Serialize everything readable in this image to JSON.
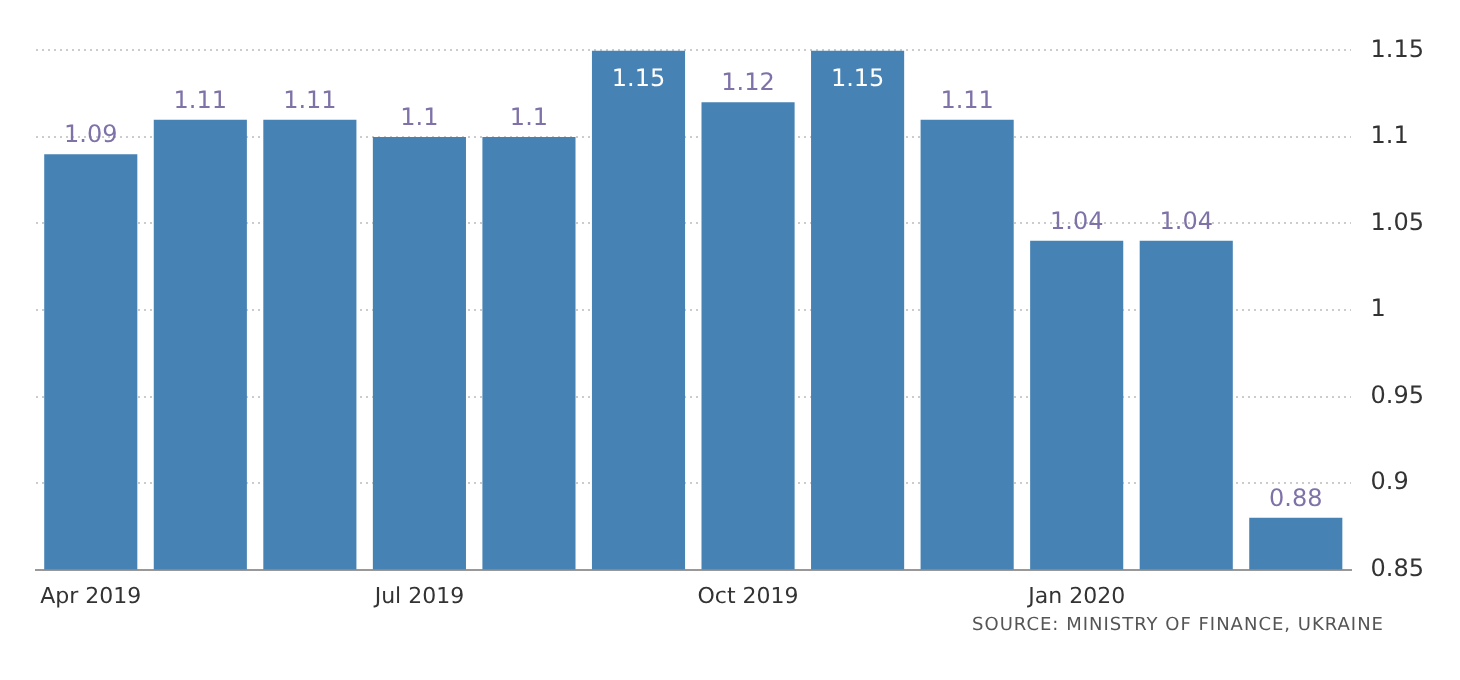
{
  "chart_data": {
    "type": "bar",
    "categories": [
      "Apr 2019",
      null,
      null,
      "Jul 2019",
      null,
      null,
      "Oct 2019",
      null,
      null,
      "Jan 2020",
      null,
      null
    ],
    "values": [
      1.09,
      1.11,
      1.11,
      1.1,
      1.1,
      1.15,
      1.12,
      1.15,
      1.11,
      1.04,
      1.04,
      0.88
    ],
    "color": "#4682b4",
    "ylim": [
      0.85,
      1.15
    ],
    "yticks": [
      0.85,
      0.9,
      0.95,
      1,
      1.05,
      1.1,
      1.15
    ],
    "grid": "y",
    "data_labels": true,
    "annotations": [
      "SOURCE: MINISTRY OF FINANCE, UKRAINE"
    ]
  }
}
